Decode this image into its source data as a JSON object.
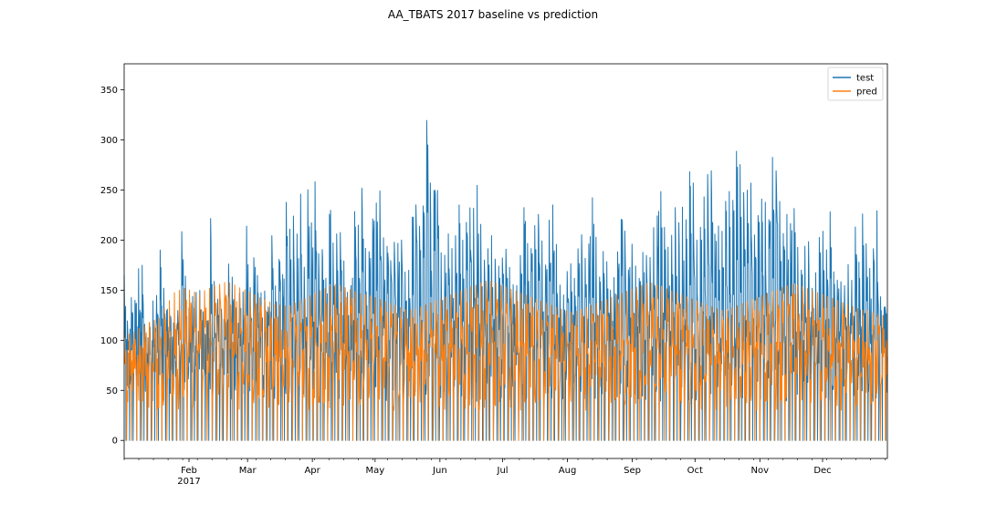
{
  "chart_data": {
    "type": "line",
    "title": "AA_TBATS 2017 baseline vs prediction",
    "xlabel": "",
    "ylabel": "",
    "x_range": [
      "2017-01-01",
      "2017-12-31"
    ],
    "ylim": [
      -18,
      376
    ],
    "y_ticks": [
      0,
      50,
      100,
      150,
      200,
      250,
      300,
      350
    ],
    "x_ticks": [
      {
        "date": "2017-02-01",
        "label": "Feb",
        "sublabel": "2017"
      },
      {
        "date": "2017-03-01",
        "label": "Mar"
      },
      {
        "date": "2017-04-01",
        "label": "Apr"
      },
      {
        "date": "2017-05-01",
        "label": "May"
      },
      {
        "date": "2017-06-01",
        "label": "Jun"
      },
      {
        "date": "2017-07-01",
        "label": "Jul"
      },
      {
        "date": "2017-08-01",
        "label": "Aug"
      },
      {
        "date": "2017-09-01",
        "label": "Sep"
      },
      {
        "date": "2017-10-01",
        "label": "Oct"
      },
      {
        "date": "2017-11-01",
        "label": "Nov"
      },
      {
        "date": "2017-12-01",
        "label": "Dec"
      }
    ],
    "legend_position": "top-right",
    "grid": false,
    "series": [
      {
        "name": "test",
        "color": "#1f77b4",
        "sampling": "daily peaks",
        "peaks": [
          165,
          105,
          143,
          140,
          172,
          175,
          100,
          118,
          140,
          145,
          192,
          150,
          130,
          120,
          115,
          118,
          215,
          160,
          130,
          145,
          148,
          150,
          110,
          120,
          233,
          150,
          140,
          130,
          120,
          184,
          160,
          128,
          150,
          148,
          225,
          140,
          190,
          160,
          145,
          150,
          130,
          220,
          140,
          190,
          160,
          256,
          200,
          230,
          200,
          258,
          150,
          278,
          200,
          275,
          160,
          200,
          150,
          250,
          180,
          215,
          205,
          170,
          140,
          160,
          254,
          200,
          272,
          160,
          200,
          230,
          240,
          253,
          180,
          200,
          170,
          211,
          190,
          205,
          150,
          180,
          245,
          230,
          205,
          250,
          358,
          200,
          278,
          233,
          160,
          200,
          210,
          180,
          220,
          245,
          170,
          250,
          220,
          240,
          265,
          180,
          180,
          200,
          208,
          160,
          185,
          180,
          200,
          150,
          160,
          150,
          215,
          248,
          150,
          230,
          200,
          250,
          150,
          200,
          240,
          230,
          160,
          150,
          140,
          200,
          150,
          175,
          210,
          200,
          160,
          240,
          245,
          150,
          180,
          200,
          150,
          150,
          180,
          200,
          250,
          150,
          200,
          190,
          150,
          180,
          200,
          160,
          220,
          200,
          265,
          220,
          200,
          180,
          250,
          200,
          250,
          200,
          260,
          285,
          200,
          200,
          240,
          250,
          300,
          200,
          220,
          200,
          230,
          260,
          220,
          290,
          285,
          250,
          240,
          277,
          200,
          220,
          238,
          250,
          200,
          285,
          275,
          250,
          200,
          230,
          210,
          240,
          200,
          165,
          190,
          210,
          150,
          160,
          200,
          215,
          180,
          240,
          170,
          160,
          160,
          150,
          180,
          150,
          220,
          170,
          230,
          200,
          170,
          185,
          240,
          145,
          130,
          160
        ],
        "base_max": 130,
        "min": 0
      },
      {
        "name": "pred",
        "color": "#ff7f0e",
        "sampling": "daily peaks",
        "peaks": [
          110,
          106,
          108,
          112,
          115,
          118,
          120,
          122,
          132,
          140,
          148,
          150,
          152,
          150,
          148,
          145,
          150,
          152,
          155,
          156,
          158,
          157,
          155,
          152,
          150,
          148,
          145,
          142,
          140,
          138,
          136,
          135,
          134,
          135,
          138,
          140,
          142,
          145,
          148,
          150,
          152,
          155,
          156,
          154,
          152,
          150,
          148,
          146,
          145,
          144,
          142,
          140,
          138,
          136,
          134,
          132,
          130,
          130,
          132,
          134,
          136,
          138,
          140,
          142,
          144,
          146,
          148,
          150,
          152,
          154,
          156,
          158,
          160,
          158,
          156,
          154,
          152,
          150,
          148,
          146,
          144,
          142,
          140,
          138,
          136,
          134,
          132,
          130,
          128,
          128,
          130,
          132,
          134,
          136,
          138,
          140,
          142,
          144,
          146,
          148,
          150,
          152,
          154,
          156,
          158,
          156,
          154,
          152,
          150,
          148,
          146,
          144,
          142,
          140,
          138,
          136,
          134,
          132,
          130,
          130,
          132,
          134,
          136,
          138,
          140,
          142,
          144,
          146,
          148,
          150,
          152,
          154,
          156,
          156,
          154,
          152,
          150,
          148,
          146,
          144,
          142,
          140,
          138,
          136,
          134,
          132,
          130,
          130,
          128,
          126,
          125,
          124
        ],
        "base_max": 100,
        "min": 0
      }
    ]
  }
}
